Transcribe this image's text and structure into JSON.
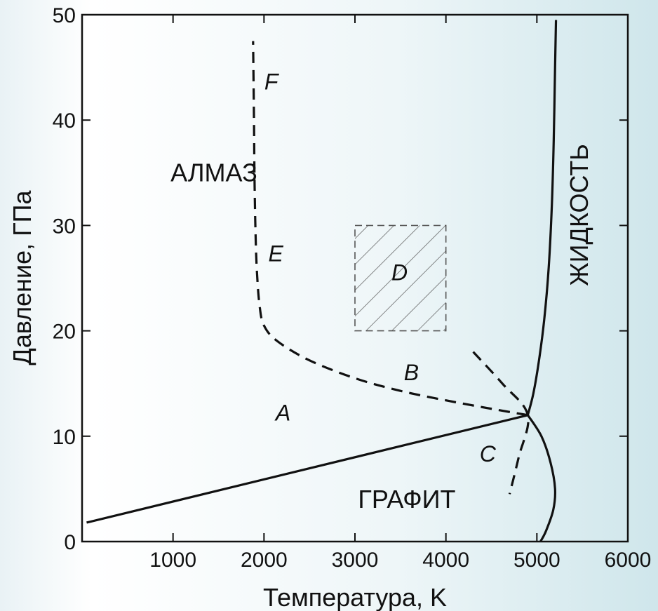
{
  "chart_data": {
    "type": "line",
    "title": "",
    "xlabel": "Температура, K",
    "ylabel": "Давление, ГПа",
    "xlim": [
      0,
      6000
    ],
    "ylim": [
      0,
      50
    ],
    "xticks": [
      1000,
      2000,
      3000,
      4000,
      5000,
      6000
    ],
    "yticks": [
      0,
      10,
      20,
      30,
      40,
      50
    ],
    "grid": false,
    "series": [
      {
        "id": "graphite-diamond-boundary",
        "style": "solid",
        "points": [
          [
            50,
            1.8
          ],
          [
            4900,
            12.0
          ]
        ]
      },
      {
        "id": "diamond-liquid-boundary",
        "style": "solid",
        "points": [
          [
            4900,
            12.0
          ],
          [
            4960,
            14.0
          ],
          [
            5020,
            17.0
          ],
          [
            5080,
            21.0
          ],
          [
            5130,
            26.0
          ],
          [
            5165,
            32.0
          ],
          [
            5185,
            38.0
          ],
          [
            5200,
            45.0
          ],
          [
            5210,
            49.5
          ]
        ]
      },
      {
        "id": "graphite-liquid-boundary",
        "style": "solid",
        "points": [
          [
            4900,
            12.0
          ],
          [
            5050,
            10.0
          ],
          [
            5150,
            7.5
          ],
          [
            5200,
            5.0
          ],
          [
            5180,
            3.0
          ],
          [
            5100,
            1.0
          ],
          [
            5040,
            0.0
          ]
        ]
      },
      {
        "id": "kinetic-boundary-B-E-F",
        "style": "dashed",
        "points": [
          [
            4900,
            12.0
          ],
          [
            4500,
            12.6
          ],
          [
            4000,
            13.4
          ],
          [
            3500,
            14.3
          ],
          [
            3000,
            15.5
          ],
          [
            2500,
            17.2
          ],
          [
            2150,
            19.0
          ],
          [
            2000,
            20.5
          ],
          [
            1950,
            22.5
          ],
          [
            1920,
            26.0
          ],
          [
            1905,
            30.0
          ],
          [
            1895,
            35.0
          ],
          [
            1890,
            40.0
          ],
          [
            1880,
            47.5
          ]
        ]
      },
      {
        "id": "kinetic-boundary-C",
        "style": "dashed",
        "points": [
          [
            4300,
            18.0
          ],
          [
            4620,
            15.0
          ],
          [
            4900,
            12.0
          ],
          [
            4800,
            8.0
          ],
          [
            4700,
            4.5
          ]
        ]
      }
    ],
    "shaded_region": {
      "id": "D",
      "x": [
        3000,
        4000
      ],
      "y": [
        20,
        30
      ],
      "pattern": "diagonal-hatch"
    },
    "labels": [
      {
        "id": "diamond",
        "text": "АЛМАЗ",
        "x": 1450,
        "y": 34.2,
        "style": "normal"
      },
      {
        "id": "graphite",
        "text": "ГРАФИТ",
        "x": 3570,
        "y": 3.2,
        "style": "normal"
      },
      {
        "id": "liquid",
        "text": "ЖИДКОСТЬ",
        "x": 5560,
        "y": 31,
        "style": "vertical"
      },
      {
        "id": "A",
        "text": "A",
        "x": 2210,
        "y": 11.5,
        "style": "italic"
      },
      {
        "id": "B",
        "text": "B",
        "x": 3620,
        "y": 15.3,
        "style": "italic"
      },
      {
        "id": "C",
        "text": "C",
        "x": 4460,
        "y": 7.6,
        "style": "italic"
      },
      {
        "id": "D",
        "text": "D",
        "x": 3490,
        "y": 24.8,
        "style": "italic"
      },
      {
        "id": "E",
        "text": "E",
        "x": 2130,
        "y": 26.6,
        "style": "italic"
      },
      {
        "id": "F",
        "text": "F",
        "x": 2080,
        "y": 42.9,
        "style": "italic"
      }
    ]
  },
  "colors": {
    "line": "#111111",
    "hatch": "#555555",
    "background_left": "#ffffff",
    "background_right": "#cfe6eb"
  }
}
